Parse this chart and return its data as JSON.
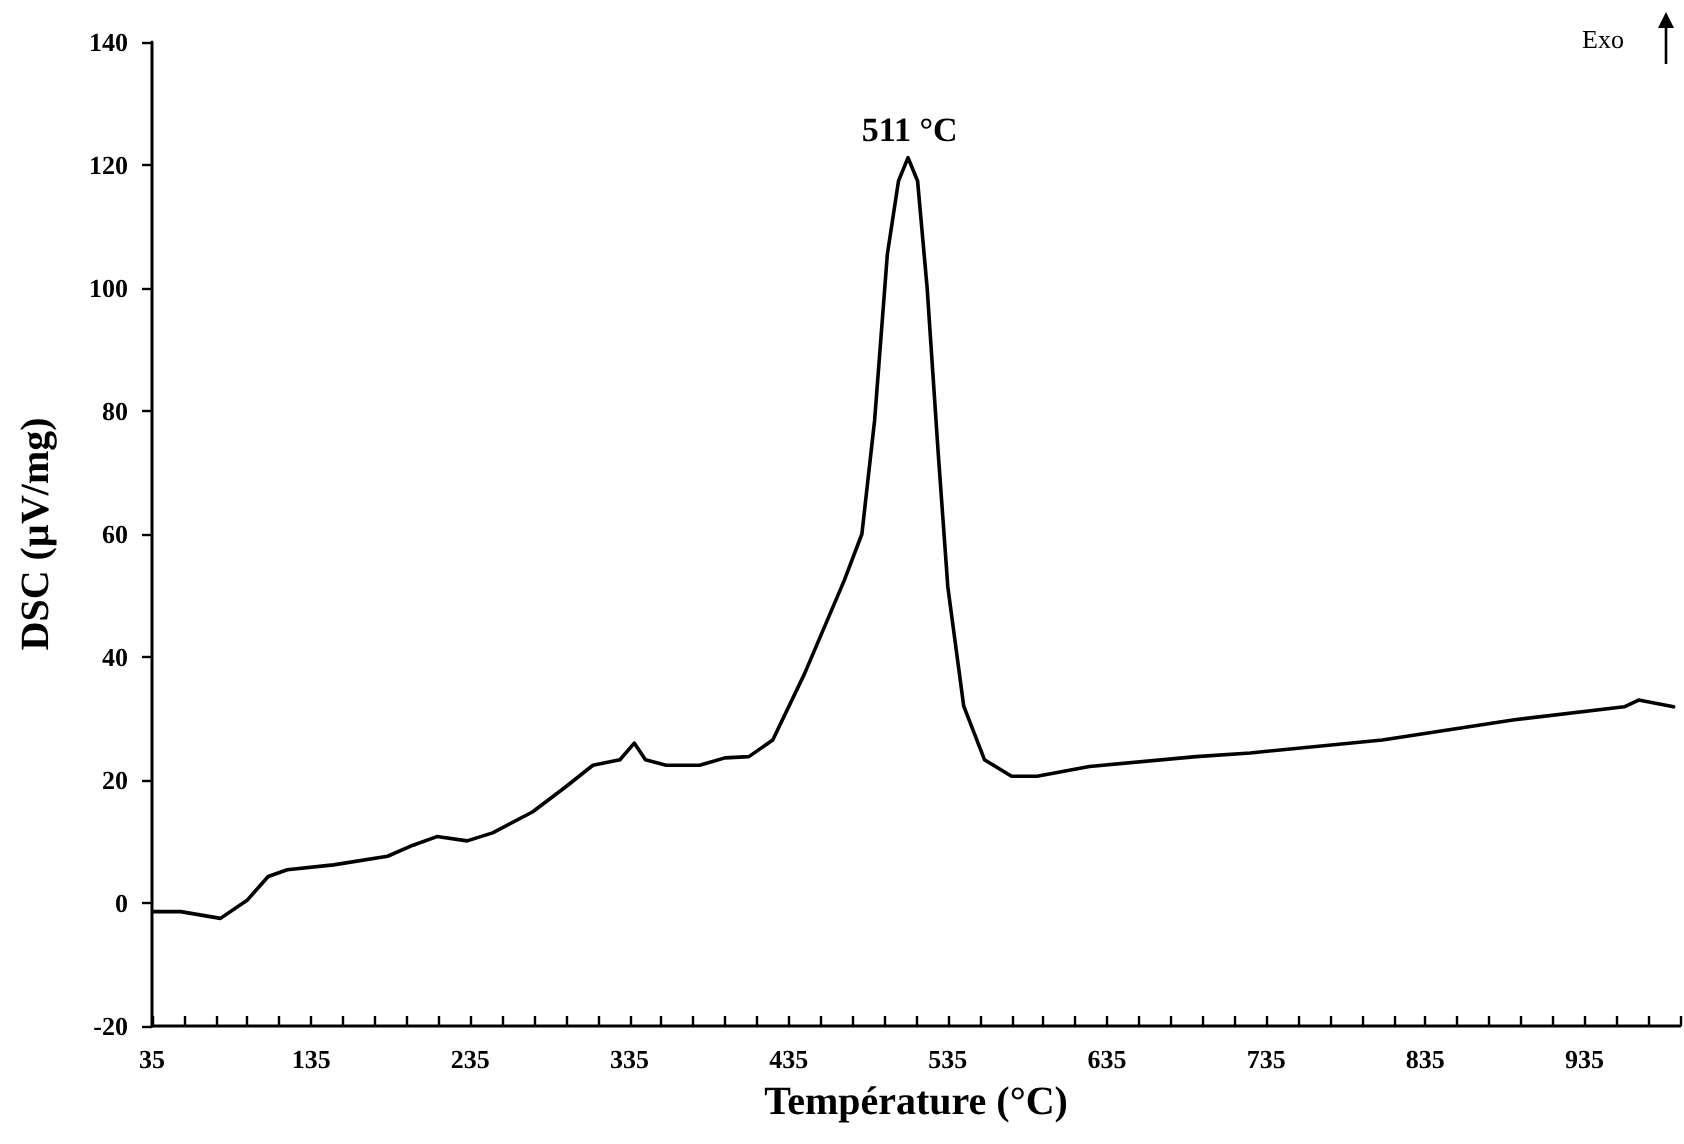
{
  "chart_data": {
    "type": "line",
    "xlabel": "Température (°C)",
    "ylabel": "DSC (µV/mg)",
    "xlim": [
      35,
      995
    ],
    "ylim": [
      -20,
      140
    ],
    "xticks": [
      35,
      {
        "value": 55,
        "label": null
      },
      {
        "value": 75,
        "label": null
      },
      {
        "value": 95,
        "label": null
      },
      {
        "value": 115,
        "label": null
      },
      135,
      {
        "value": 155,
        "label": null
      },
      {
        "value": 175,
        "label": null
      },
      {
        "value": 195,
        "label": null
      },
      {
        "value": 215,
        "label": null
      },
      235,
      {
        "value": 255,
        "label": null
      },
      {
        "value": 275,
        "label": null
      },
      {
        "value": 295,
        "label": null
      },
      {
        "value": 315,
        "label": null
      },
      335,
      {
        "value": 355,
        "label": null
      },
      {
        "value": 375,
        "label": null
      },
      {
        "value": 395,
        "label": null
      },
      {
        "value": 415,
        "label": null
      },
      435,
      {
        "value": 455,
        "label": null
      },
      {
        "value": 475,
        "label": null
      },
      {
        "value": 495,
        "label": null
      },
      {
        "value": 515,
        "label": null
      },
      535,
      {
        "value": 555,
        "label": null
      },
      {
        "value": 575,
        "label": null
      },
      {
        "value": 595,
        "label": null
      },
      {
        "value": 615,
        "label": null
      },
      635,
      {
        "value": 655,
        "label": null
      },
      {
        "value": 675,
        "label": null
      },
      {
        "value": 695,
        "label": null
      },
      {
        "value": 715,
        "label": null
      },
      735,
      {
        "value": 755,
        "label": null
      },
      {
        "value": 775,
        "label": null
      },
      {
        "value": 795,
        "label": null
      },
      {
        "value": 815,
        "label": null
      },
      835,
      {
        "value": 855,
        "label": null
      },
      {
        "value": 875,
        "label": null
      },
      {
        "value": 895,
        "label": null
      },
      {
        "value": 915,
        "label": null
      },
      935,
      {
        "value": 955,
        "label": null
      },
      {
        "value": 975,
        "label": null
      },
      {
        "value": 995,
        "label": null
      }
    ],
    "yticks": [
      -20,
      0,
      20,
      40,
      60,
      80,
      100,
      120,
      140
    ],
    "grid": false,
    "marker": "none",
    "line_style": "solid",
    "annotations": [
      {
        "text": "511 °C",
        "x": 511,
        "y": 121
      },
      "Exo"
    ],
    "series": [
      {
        "color": "#000000",
        "x": [
          36,
          53,
          78,
          95,
          108,
          120,
          149,
          183,
          199,
          214,
          233,
          249,
          274,
          295,
          312,
          329,
          338,
          345,
          358,
          379,
          395,
          410,
          425,
          445,
          470,
          481,
          489,
          497,
          504,
          510,
          516,
          522,
          529,
          535,
          545,
          558,
          575,
          591,
          624,
          691,
          725,
          808,
          891,
          960,
          969,
          991
        ],
        "values": [
          -1.4,
          -1.4,
          -2.5,
          0.5,
          4.3,
          5.4,
          6.2,
          7.6,
          9.4,
          10.8,
          10.1,
          11.4,
          14.8,
          18.9,
          22.4,
          23.3,
          26,
          23.3,
          22.4,
          22.4,
          23.6,
          23.8,
          26.5,
          37.3,
          52.5,
          60,
          78.5,
          105.5,
          117.4,
          121.2,
          117.4,
          100,
          73,
          51.4,
          32,
          23.3,
          20.6,
          20.6,
          22.2,
          23.8,
          24.4,
          26.5,
          29.8,
          31.9,
          33,
          31.9
        ]
      }
    ]
  }
}
